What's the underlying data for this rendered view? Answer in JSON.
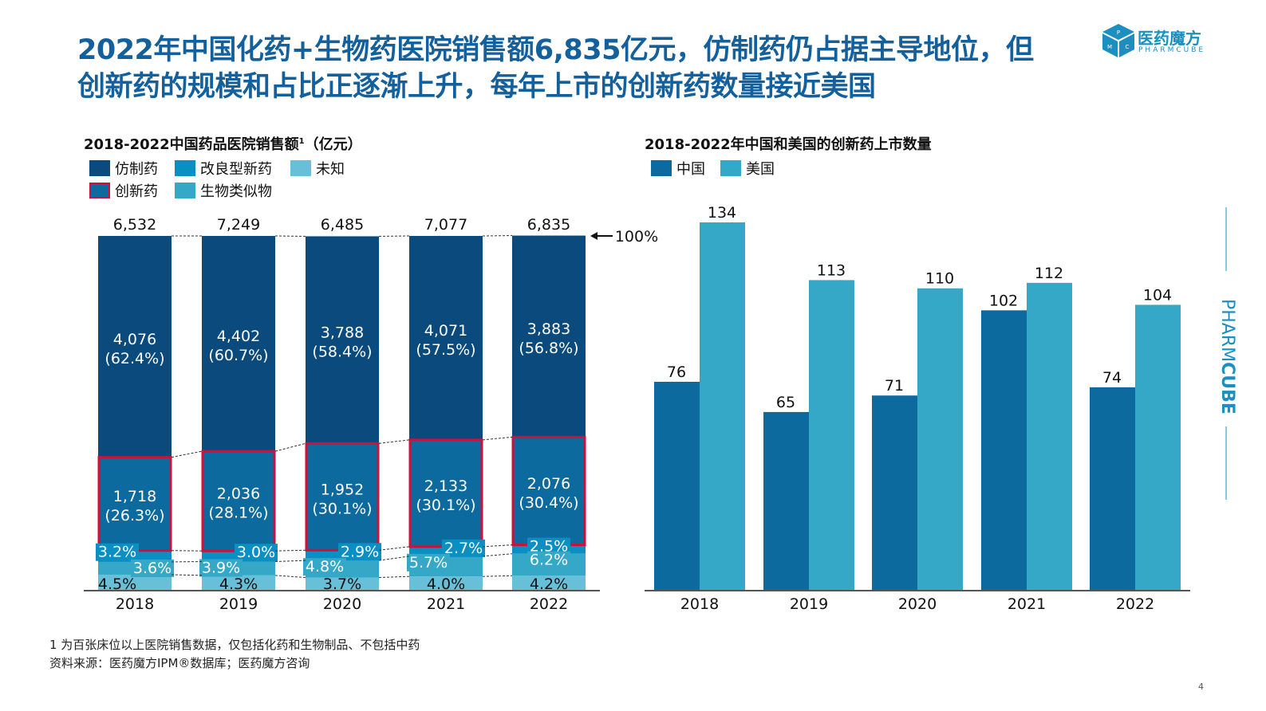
{
  "title": {
    "line1": "2022年中国化药+生物药医院销售额6,835亿元，仿制药仍占据主导地位，但",
    "line2": "创新药的规模和占比正逐渐上升，每年上市的创新药数量接近美国"
  },
  "logo": {
    "cn": "医药魔方",
    "en": "PHARMCUBE",
    "cube_letters": "PMC"
  },
  "side_brand": {
    "light": "PHARM",
    "bold": "CUBE"
  },
  "colors": {
    "title": "#14609c",
    "generic": "#0a4a7c",
    "innovative": "#0d6a9e",
    "improved": "#0a8fc2",
    "biosimilar": "#35a8c8",
    "unknown": "#68bfd8",
    "innovative_border": "#d0103a",
    "china": "#0d6a9e",
    "usa": "#35a8c8"
  },
  "chart_data": [
    {
      "type": "bar",
      "stacked": true,
      "title": "2018-2022中国药品医院销售额",
      "title_sup": "1",
      "title_unit": "（亿元）",
      "categories": [
        "2018",
        "2019",
        "2020",
        "2021",
        "2022"
      ],
      "totals": [
        "6,532",
        "7,249",
        "6,485",
        "7,077",
        "6,835"
      ],
      "reference_label": "100%",
      "legend": [
        "仿制药",
        "改良型新药",
        "未知",
        "创新药",
        "生物类似物"
      ],
      "series": [
        {
          "name": "未知",
          "percent": [
            4.5,
            4.3,
            3.7,
            4.0,
            4.2
          ],
          "labels": [
            "4.5%",
            "4.3%",
            "3.7%",
            "4.0%",
            "4.2%"
          ]
        },
        {
          "name": "生物类似物",
          "percent": [
            3.6,
            3.9,
            4.8,
            5.7,
            6.2
          ],
          "labels": [
            "3.6%",
            "3.9%",
            "4.8%",
            "5.7%",
            "6.2%"
          ]
        },
        {
          "name": "改良型新药",
          "percent": [
            3.2,
            3.0,
            2.9,
            2.7,
            2.5
          ],
          "labels": [
            "3.2%",
            "3.0%",
            "2.9%",
            "2.7%",
            "2.5%"
          ]
        },
        {
          "name": "创新药",
          "percent": [
            26.3,
            28.1,
            30.1,
            30.1,
            30.4
          ],
          "values": [
            "1,718",
            "2,036",
            "1,952",
            "2,133",
            "2,076"
          ],
          "labels": [
            "(26.3%)",
            "(28.1%)",
            "(30.1%)",
            "(30.1%)",
            "(30.4%)"
          ]
        },
        {
          "name": "仿制药",
          "percent": [
            62.4,
            60.7,
            58.4,
            57.5,
            56.8
          ],
          "values": [
            "4,076",
            "4,402",
            "3,788",
            "4,071",
            "3,883"
          ],
          "labels": [
            "(62.4%)",
            "(60.7%)",
            "(58.4%)",
            "(57.5%)",
            "(56.8%)"
          ]
        }
      ],
      "ylim": [
        0,
        100
      ]
    },
    {
      "type": "bar",
      "title": "2018-2022年中国和美国的创新药上市数量",
      "categories": [
        "2018",
        "2019",
        "2020",
        "2021",
        "2022"
      ],
      "series": [
        {
          "name": "中国",
          "values": [
            76,
            65,
            71,
            102,
            74
          ]
        },
        {
          "name": "美国",
          "values": [
            134,
            113,
            110,
            112,
            104
          ]
        }
      ],
      "ylim": [
        0,
        134
      ]
    }
  ],
  "footnotes": {
    "note1": "1 为百张床位以上医院销售数据，仅包括化药和生物制品、不包括中药",
    "source": "资料来源：医药魔方IPM®数据库；医药魔方咨询"
  },
  "page_number": "4"
}
